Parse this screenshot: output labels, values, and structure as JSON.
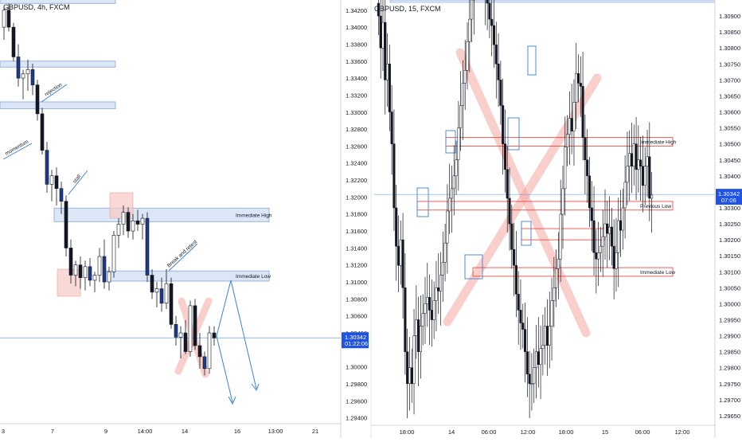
{
  "chart_data": [
    {
      "type": "candlestick",
      "symbol_label": "GBPUSD, 4h, FXCM",
      "y_ticks": [
        "1.34200",
        "1.34000",
        "1.33800",
        "1.33600",
        "1.33400",
        "1.33200",
        "1.33000",
        "1.32800",
        "1.32600",
        "1.32400",
        "1.32200",
        "1.32000",
        "1.31800",
        "1.31600",
        "1.31400",
        "1.31200",
        "1.31000",
        "1.30800",
        "1.30600",
        "1.30400",
        "1.30000",
        "1.29800",
        "1.29600",
        "1.29400"
      ],
      "ylim": [
        1.2935,
        1.3432
      ],
      "x_ticks": [
        "3",
        "7",
        "9",
        "14:00",
        "14",
        "16",
        "13:00",
        "21"
      ],
      "last_price": "1.30342",
      "countdown": "01:22:06",
      "candle_up_color": "#ffffff",
      "candle_down_color": "#131722",
      "candle_accent_color": "#1e3a8a",
      "zone_color": "#dbe6f7",
      "zones": [
        {
          "label": "",
          "from": 1.3434,
          "to": 1.3428
        },
        {
          "label": "",
          "from": 1.336,
          "to": 1.3353
        },
        {
          "label": "",
          "from": 1.3312,
          "to": 1.3304
        },
        {
          "label": "Immediate High",
          "from": 1.3187,
          "to": 1.3171
        },
        {
          "label": "Immediate Low",
          "from": 1.3113,
          "to": 1.3101
        }
      ],
      "annotations": [
        "momentum",
        "rejection",
        "stall",
        "Break and retest"
      ],
      "candles": [
        [
          1.34,
          1.3425,
          1.3385,
          1.342
        ],
        [
          1.342,
          1.3428,
          1.3395,
          1.34
        ],
        [
          1.34,
          1.3405,
          1.336,
          1.3365
        ],
        [
          1.3365,
          1.338,
          1.333,
          1.334
        ],
        [
          1.334,
          1.335,
          1.3315,
          1.3345
        ],
        [
          1.3345,
          1.3362,
          1.3325,
          1.335
        ],
        [
          1.335,
          1.3357,
          1.332,
          1.3332
        ],
        [
          1.3332,
          1.3338,
          1.329,
          1.3298
        ],
        [
          1.3298,
          1.3305,
          1.325,
          1.3255
        ],
        [
          1.3255,
          1.3265,
          1.3205,
          1.3215
        ],
        [
          1.3215,
          1.3232,
          1.3195,
          1.3225
        ],
        [
          1.3225,
          1.3235,
          1.319,
          1.321
        ],
        [
          1.321,
          1.3218,
          1.318,
          1.3195
        ],
        [
          1.3195,
          1.3202,
          1.313,
          1.314
        ],
        [
          1.314,
          1.315,
          1.3098,
          1.3108
        ],
        [
          1.3108,
          1.3125,
          1.3095,
          1.312
        ],
        [
          1.312,
          1.313,
          1.3092,
          1.3105
        ],
        [
          1.3105,
          1.3125,
          1.309,
          1.3118
        ],
        [
          1.3118,
          1.3128,
          1.3095,
          1.3102
        ],
        [
          1.3102,
          1.3112,
          1.3088,
          1.3108
        ],
        [
          1.3108,
          1.314,
          1.31,
          1.313
        ],
        [
          1.313,
          1.315,
          1.3092,
          1.31
        ],
        [
          1.31,
          1.3118,
          1.309,
          1.3112
        ],
        [
          1.3112,
          1.316,
          1.3105,
          1.3155
        ],
        [
          1.3155,
          1.3175,
          1.314,
          1.3168
        ],
        [
          1.3168,
          1.319,
          1.3155,
          1.3182
        ],
        [
          1.3182,
          1.3188,
          1.3152,
          1.316
        ],
        [
          1.316,
          1.318,
          1.315,
          1.3172
        ],
        [
          1.3172,
          1.3185,
          1.316,
          1.3168
        ],
        [
          1.3168,
          1.318,
          1.315,
          1.3175
        ],
        [
          1.3175,
          1.3182,
          1.31,
          1.3108
        ],
        [
          1.3108,
          1.3115,
          1.308,
          1.3088
        ],
        [
          1.3088,
          1.31,
          1.307,
          1.3092
        ],
        [
          1.3092,
          1.3105,
          1.3065,
          1.3075
        ],
        [
          1.3075,
          1.3115,
          1.3068,
          1.3098
        ],
        [
          1.3098,
          1.3105,
          1.3045,
          1.305
        ],
        [
          1.305,
          1.306,
          1.3025,
          1.3035
        ],
        [
          1.3035,
          1.3048,
          1.301,
          1.304
        ],
        [
          1.304,
          1.3055,
          1.3015,
          1.3018
        ],
        [
          1.3018,
          1.3078,
          1.3012,
          1.3072
        ],
        [
          1.3072,
          1.308,
          1.302,
          1.3025
        ],
        [
          1.3025,
          1.304,
          1.2998,
          1.3012
        ],
        [
          1.3012,
          1.3018,
          1.299,
          1.2998
        ],
        [
          1.2998,
          1.3048,
          1.2992,
          1.304
        ],
        [
          1.304,
          1.3048,
          1.3025,
          1.3034
        ]
      ]
    },
    {
      "type": "candlestick",
      "symbol_label": "GBPUSD, 15, FXCM",
      "y_ticks": [
        "1.30900",
        "1.30850",
        "1.30800",
        "1.30750",
        "1.30700",
        "1.30650",
        "1.30600",
        "1.30550",
        "1.30500",
        "1.30450",
        "1.30400",
        "1.30350",
        "1.30300",
        "1.30250",
        "1.30200",
        "1.30150",
        "1.30100",
        "1.30050",
        "1.30000",
        "1.29950",
        "1.29900",
        "1.29850",
        "1.29800",
        "1.29750",
        "1.29700",
        "1.29650"
      ],
      "ylim": [
        1.2962,
        1.3095
      ],
      "x_ticks": [
        "18:00",
        "14",
        "06:00",
        "12:00",
        "18:00",
        "15",
        "06:00",
        "12:00"
      ],
      "last_price": "1.30342",
      "countdown": "07:06",
      "candle_up_color": "#ffffff",
      "candle_down_color": "#131722",
      "zone_color": "#e53935",
      "zones": [
        {
          "label": "Immediate High",
          "from": 1.3052,
          "to": 1.30493
        },
        {
          "label": "Previous Low",
          "from": 1.3032,
          "to": 1.30293
        },
        {
          "label": "",
          "from": 1.30235,
          "to": 1.302
        },
        {
          "label": "Immediate Low",
          "from": 1.30113,
          "to": 1.30086
        }
      ],
      "highlight_boxes": 6,
      "big_cross": true,
      "series_close": [
        1.309,
        1.308,
        1.3088,
        1.307,
        1.3075,
        1.306,
        1.305,
        1.303,
        1.3018,
        1.3012,
        1.302,
        1.3005,
        1.2985,
        1.2975,
        1.298,
        1.2975,
        1.299,
        1.2995,
        1.2985,
        1.2993,
        1.2997,
        1.3,
        1.3002,
        1.2998,
        1.2995,
        1.3001,
        1.3005,
        1.3004,
        1.3009,
        1.3013,
        1.3019,
        1.3029,
        1.3033,
        1.3036,
        1.304,
        1.3045,
        1.3055,
        1.3062,
        1.3069,
        1.3073,
        1.3082,
        1.3089,
        1.3095,
        1.3108,
        1.3109,
        1.3112,
        1.3116,
        1.3111,
        1.3098,
        1.3094,
        1.3089,
        1.3087,
        1.3081,
        1.3075,
        1.307,
        1.3062,
        1.305,
        1.3042,
        1.3033,
        1.3025,
        1.3017,
        1.3012,
        1.3003,
        1.2998,
        1.2994,
        1.2992,
        1.2985,
        1.2978,
        1.2975,
        1.2975,
        1.298,
        1.2985,
        1.2981,
        1.2986,
        1.2987,
        1.2993,
        1.2987,
        1.2993,
        1.3001,
        1.3005,
        1.3011,
        1.3014,
        1.3028,
        1.3036,
        1.3049,
        1.3053,
        1.3058,
        1.3054,
        1.3063,
        1.3072,
        1.3069,
        1.3068,
        1.3052,
        1.3045,
        1.304,
        1.303,
        1.3026,
        1.3016,
        1.3014,
        1.3016,
        1.3018,
        1.3021,
        1.3025,
        1.3022,
        1.3024,
        1.3018,
        1.3011,
        1.3016,
        1.3026,
        1.3023,
        1.303,
        1.3038,
        1.3043,
        1.3047,
        1.3043,
        1.305,
        1.3042,
        1.3045,
        1.3043,
        1.3037,
        1.3043,
        1.3046,
        1.3033,
        1.3034
      ]
    }
  ]
}
